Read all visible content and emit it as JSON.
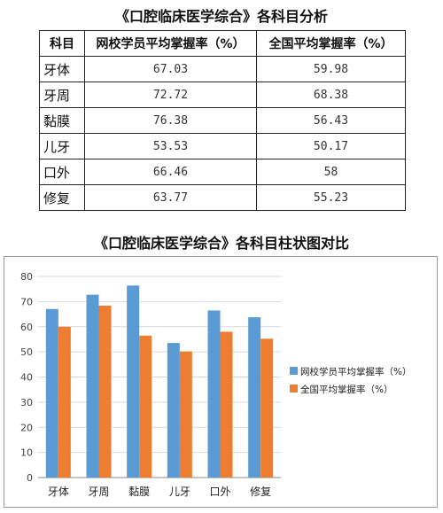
{
  "table": {
    "title": "《口腔临床医学综合》各科目分析",
    "headers": [
      "科目",
      "网校学员平均掌握率（%）",
      "全国平均掌握率（%）"
    ],
    "rows": [
      {
        "subject": "牙体",
        "school": "67.03",
        "national": "59.98"
      },
      {
        "subject": "牙周",
        "school": "72.72",
        "national": "68.38"
      },
      {
        "subject": "黏膜",
        "school": "76.38",
        "national": "56.43"
      },
      {
        "subject": "儿牙",
        "school": "53.53",
        "national": "50.17"
      },
      {
        "subject": "口外",
        "school": "66.46",
        "national": "58"
      },
      {
        "subject": "修复",
        "school": "63.77",
        "national": "55.23"
      }
    ]
  },
  "chart_data": {
    "type": "bar",
    "title": "《口腔临床医学综合》各科目柱状图对比",
    "categories": [
      "牙体",
      "牙周",
      "黏膜",
      "儿牙",
      "口外",
      "修复"
    ],
    "series": [
      {
        "name": "网校学员平均掌握率（%）",
        "color": "#5b9bd5",
        "values": [
          67.03,
          72.72,
          76.38,
          53.53,
          66.46,
          63.77
        ]
      },
      {
        "name": "全国平均掌握率（%）",
        "color": "#ed7d31",
        "values": [
          59.98,
          68.38,
          56.43,
          50.17,
          58,
          55.23
        ]
      }
    ],
    "ylim": [
      0,
      80
    ],
    "yticks": [
      0,
      10,
      20,
      30,
      40,
      50,
      60,
      70,
      80
    ],
    "grid": true,
    "legend": "right"
  }
}
